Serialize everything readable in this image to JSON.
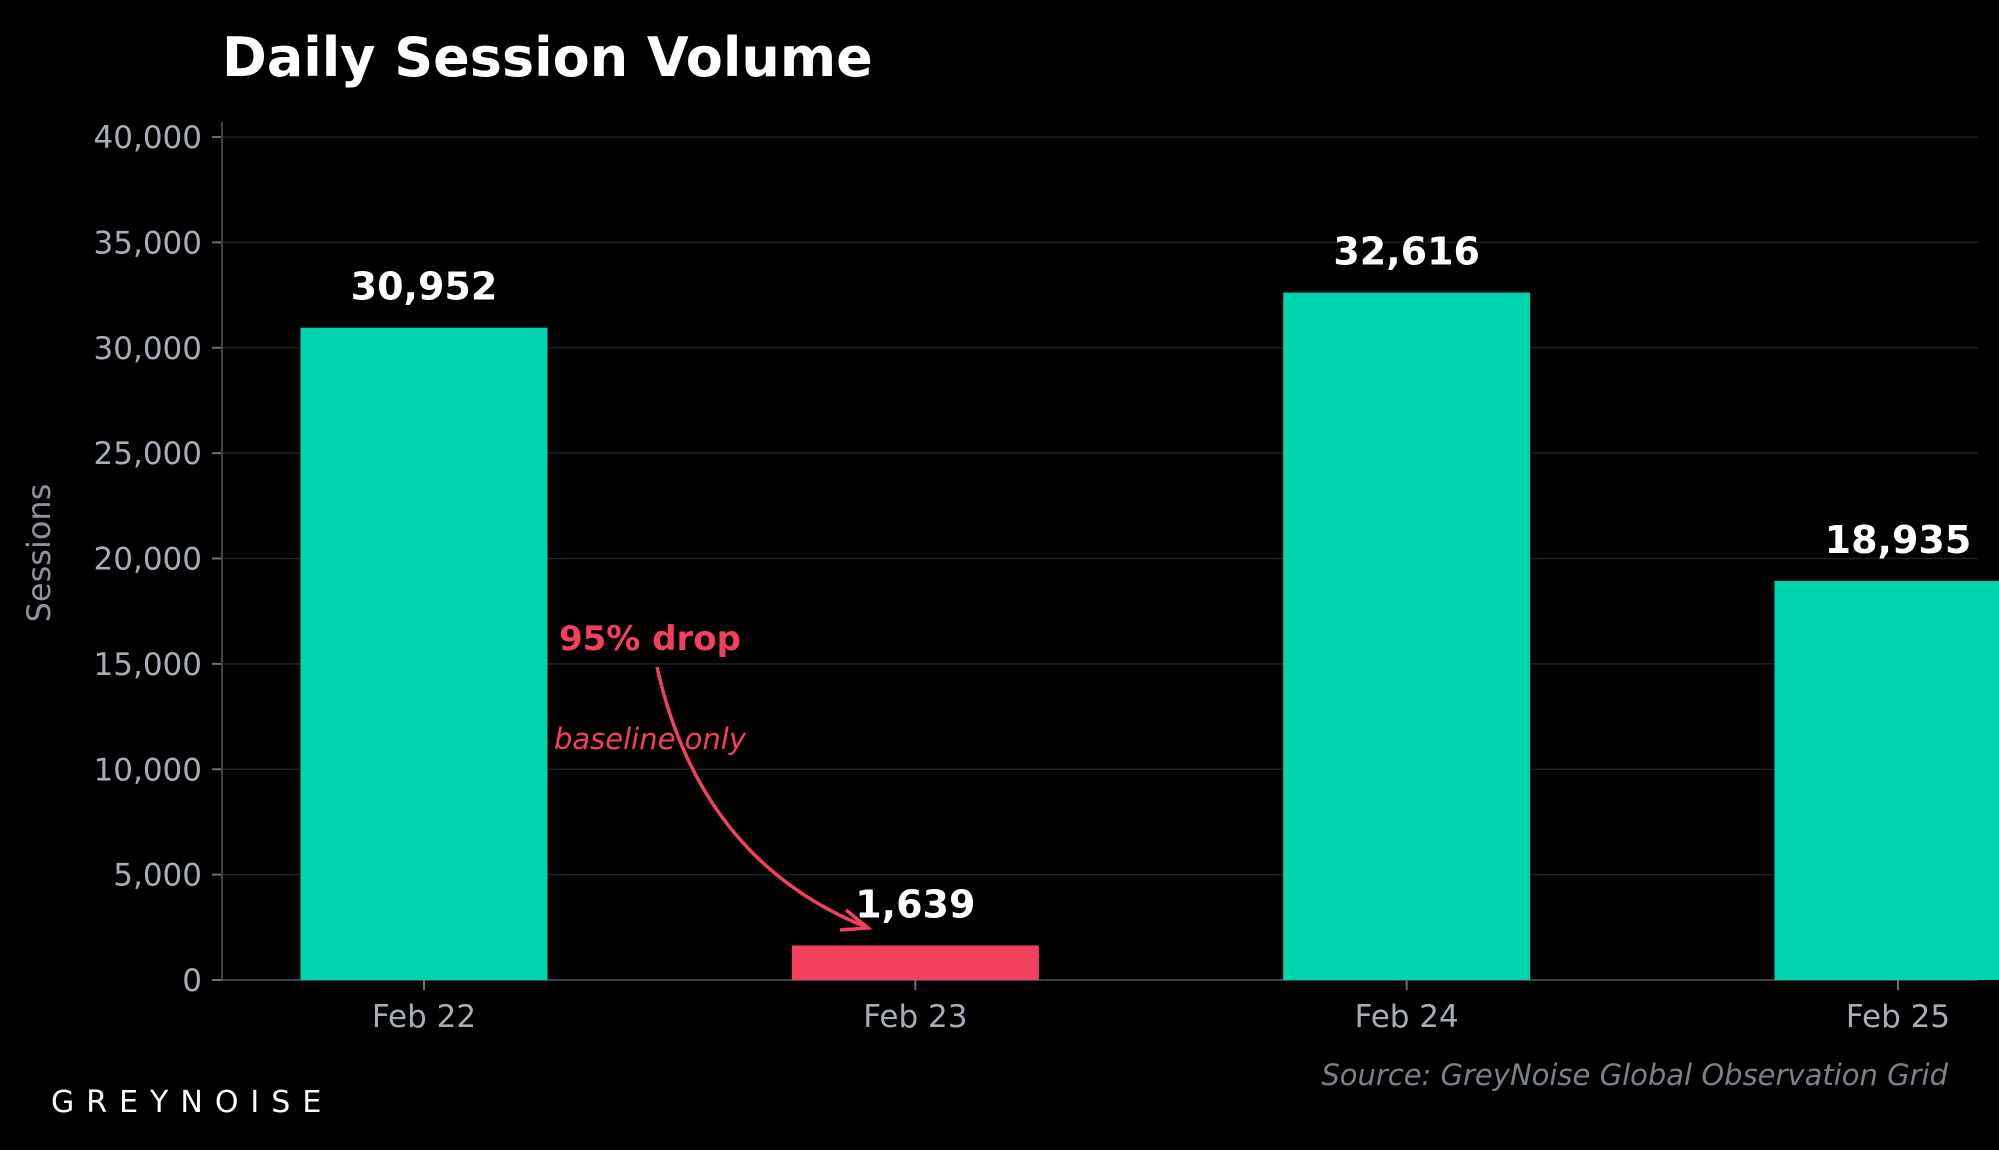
{
  "chart_data": {
    "type": "bar",
    "title": "Daily Session Volume",
    "ylabel": "Sessions",
    "xlabel": "",
    "categories": [
      "Feb 22",
      "Feb 23",
      "Feb 24",
      "Feb 25"
    ],
    "values": [
      30952,
      1639,
      32616,
      18935
    ],
    "value_labels": [
      "30,952",
      "1,639",
      "32,616",
      "18,935"
    ],
    "ylim": [
      0,
      40000
    ],
    "yticks": [
      0,
      5000,
      10000,
      15000,
      20000,
      25000,
      30000,
      35000,
      40000
    ],
    "ytick_labels": [
      "0",
      "5,000",
      "10,000",
      "15,000",
      "20,000",
      "25,000",
      "30,000",
      "35,000",
      "40,000"
    ],
    "grid": true,
    "colors": {
      "normal": "#00d4ad",
      "highlight": "#f4405f",
      "background": "#000000"
    },
    "highlight_index": 1,
    "annotation": {
      "text": "95% drop",
      "subtext": "baseline only",
      "color": "#f4405f",
      "target_category": "Feb 23"
    }
  },
  "source": "Source: GreyNoise Global Observation Grid",
  "brand": "GREYNOISE"
}
